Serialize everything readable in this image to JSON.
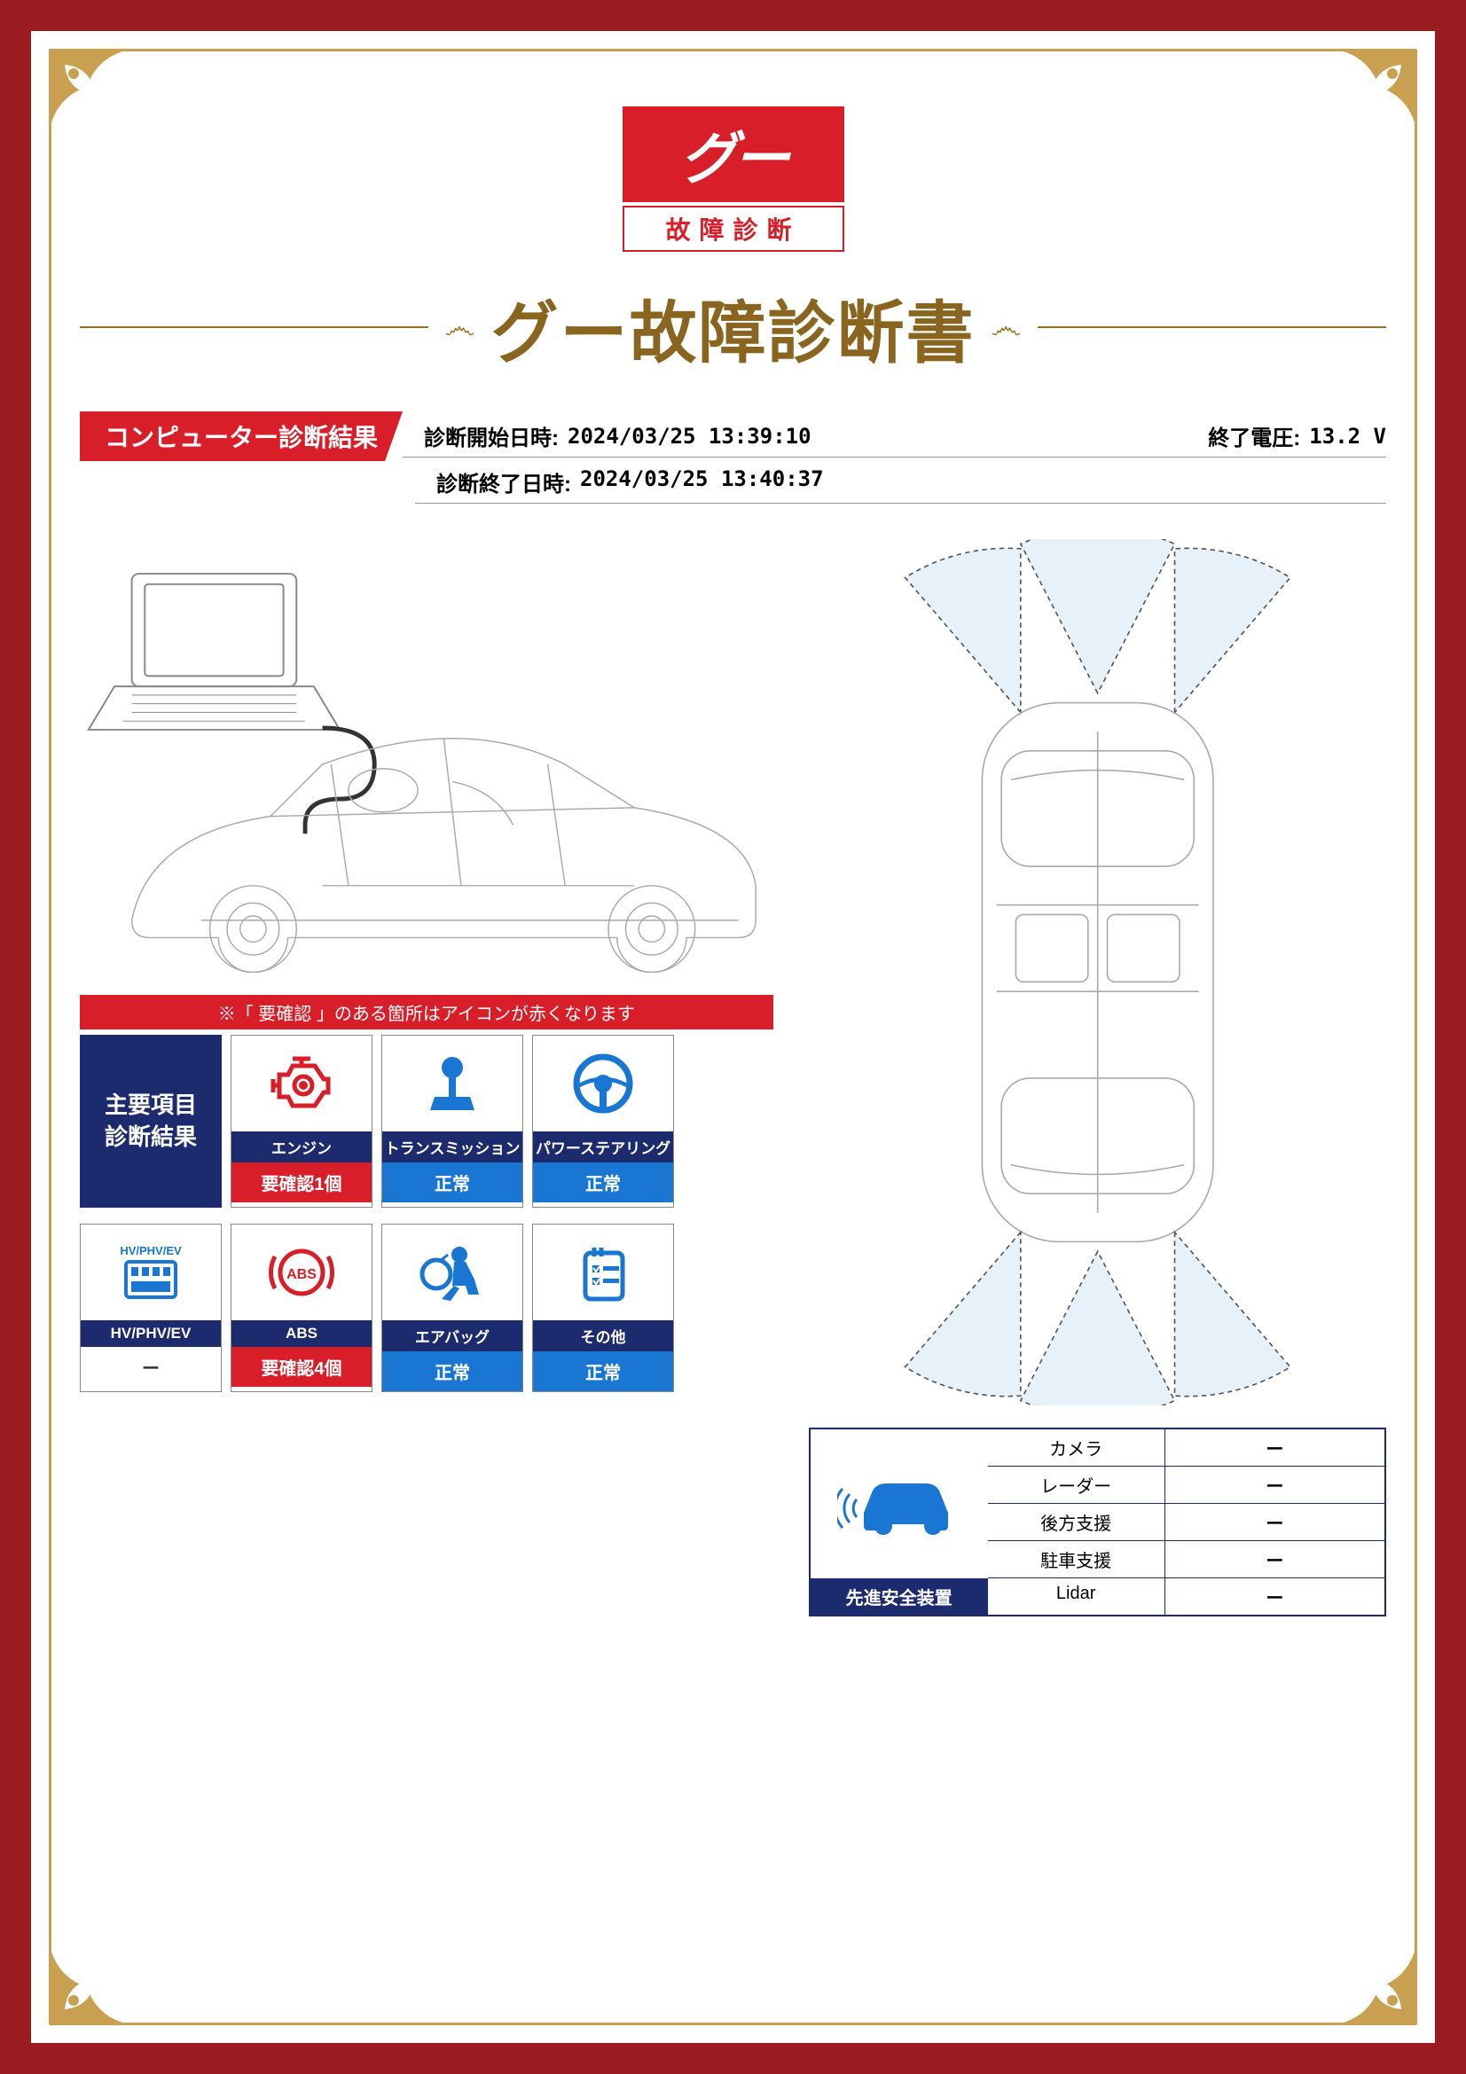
{
  "logo": {
    "main": "グー",
    "sub": "故障診断"
  },
  "title": "グー故障診断書",
  "banner": "コンピューター診断結果",
  "header": {
    "start_label": "診断開始日時:",
    "start_val": "2024/03/25 13:39:10",
    "volt_label": "終了電圧:",
    "volt_val": "13.2 V",
    "end_label": "診断終了日時:",
    "end_val": "2024/03/25 13:40:37"
  },
  "strip_note": "※「 要確認 」のある箇所はアイコンが赤くなります",
  "main_card": "主要項目\n診断結果",
  "cards": [
    {
      "name": "エンジン",
      "status": "要確認1個",
      "status_class": "status-warn",
      "icon_color": "#d81e28"
    },
    {
      "name": "トランスミッション",
      "status": "正常",
      "status_class": "status-normal",
      "icon_color": "#1976d2"
    },
    {
      "name": "パワーステアリング",
      "status": "正常",
      "status_class": "status-normal",
      "icon_color": "#1976d2"
    }
  ],
  "cards2": [
    {
      "name": "HV/PHV/EV",
      "status": "ー",
      "status_class": "status-none",
      "icon_color": "#1976d2"
    },
    {
      "name": "ABS",
      "status": "要確認4個",
      "status_class": "status-warn",
      "icon_color": "#d81e28"
    },
    {
      "name": "エアバッグ",
      "status": "正常",
      "status_class": "status-normal",
      "icon_color": "#1976d2"
    },
    {
      "name": "その他",
      "status": "正常",
      "status_class": "status-normal",
      "icon_color": "#1976d2"
    }
  ],
  "safety": {
    "label": "先進安全装置",
    "rows": [
      {
        "key": "カメラ",
        "val": "ー"
      },
      {
        "key": "レーダー",
        "val": "ー"
      },
      {
        "key": "後方支援",
        "val": "ー"
      },
      {
        "key": "駐車支援",
        "val": "ー"
      },
      {
        "key": "Lidar",
        "val": "ー"
      }
    ]
  },
  "colors": {
    "frame": "#9a1b20",
    "gold": "#c9a050",
    "red": "#d81e28",
    "navy": "#1c2a6e",
    "blue": "#1976d2"
  }
}
